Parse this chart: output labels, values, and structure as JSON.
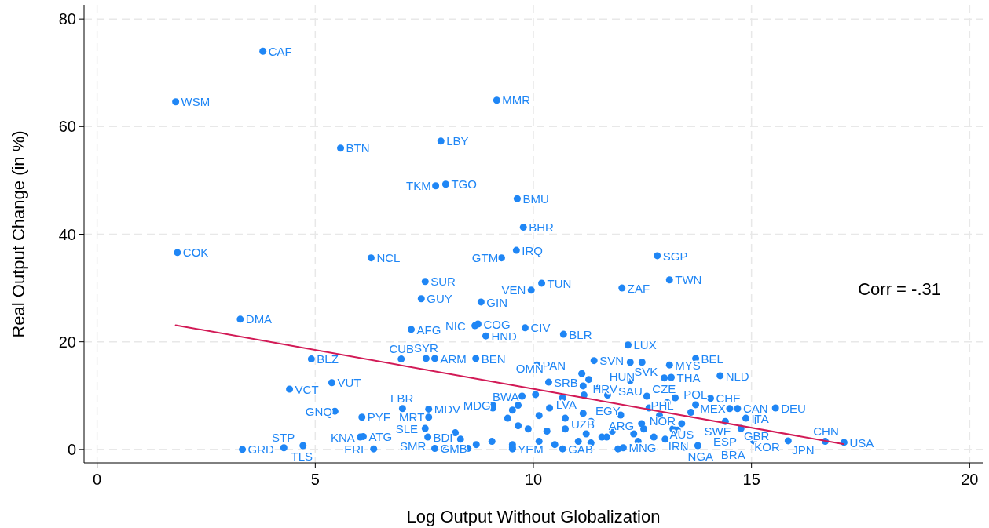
{
  "chart_data": {
    "type": "scatter",
    "xlabel": "Log Output Without Globalization",
    "ylabel": "Real Output Change (in %)",
    "xlim": [
      -0.3,
      20.3
    ],
    "ylim": [
      -2.5,
      82.5
    ],
    "xticks": [
      0,
      5,
      10,
      15,
      20
    ],
    "yticks": [
      0,
      20,
      40,
      60,
      80
    ],
    "grid": true,
    "annotations": [
      "Corr = -.31"
    ],
    "series": [
      {
        "marker": "circle",
        "color": "#1f86f5",
        "x": [
          3.8,
          1.8,
          9.16,
          5.58,
          7.88,
          7.76,
          7.99,
          9.63,
          9.77,
          1.84,
          6.28,
          9.61,
          9.27,
          12.84,
          7.52,
          10.19,
          9.95,
          13.12,
          12.03,
          7.43,
          8.8,
          3.28,
          7.2,
          8.73,
          8.66,
          9.81,
          8.91,
          10.69,
          12.17,
          13.72,
          10.08,
          11.39,
          12.22,
          12.49,
          13.12,
          4.91,
          6.97,
          7.54,
          7.74,
          8.68,
          5.38,
          4.41,
          11.11,
          12.22,
          13.16,
          13.0,
          10.35,
          11.27,
          14.28,
          14.06,
          11.7,
          11.16,
          12.6,
          13.72,
          15.55,
          14.5,
          14.68,
          13.61,
          14.87,
          15.1,
          14.4,
          14.76,
          13.4,
          13.3,
          15.84,
          16.69,
          17.12,
          15.05,
          13.45,
          13.77,
          11.14,
          12.0,
          5.45,
          6.07,
          7.0,
          7.6,
          7.6,
          7.52,
          7.58,
          6.03,
          6.1,
          3.33,
          4.28,
          4.72,
          6.34,
          7.74,
          7.98,
          8.5,
          9.07,
          9.74,
          12.06,
          10.67,
          9.52,
          9.23,
          10.05,
          10.67,
          11.14,
          11.5,
          9.07,
          9.52,
          10.13,
          10.73,
          11.32,
          12.65,
          12.89,
          13.25,
          13.07,
          9.41,
          9.65,
          9.88,
          10.31,
          10.73,
          11.21,
          11.57,
          11.81,
          12.3,
          12.53,
          12.76,
          13.2,
          9.05,
          9.52,
          10.13,
          10.49,
          11.03,
          11.32,
          11.68,
          11.94,
          12.4,
          13.02,
          12.48,
          9.65,
          10.37,
          8.21,
          8.33,
          8.69,
          9.52
        ],
        "values": [
          74.0,
          64.6,
          64.9,
          56.0,
          57.3,
          49.0,
          49.3,
          46.6,
          41.3,
          36.6,
          35.6,
          37.0,
          35.6,
          36.0,
          31.2,
          30.9,
          29.6,
          31.5,
          30.0,
          28.0,
          27.4,
          24.2,
          22.3,
          23.3,
          23.0,
          22.6,
          21.1,
          21.4,
          19.4,
          16.9,
          15.7,
          16.5,
          16.2,
          16.2,
          15.7,
          16.8,
          16.8,
          16.9,
          16.9,
          16.9,
          12.4,
          11.2,
          14.1,
          12.8,
          13.4,
          13.3,
          12.5,
          13.0,
          13.7,
          9.5,
          10.1,
          10.1,
          9.9,
          8.3,
          7.7,
          7.6,
          7.6,
          6.9,
          5.8,
          5.4,
          5.2,
          3.9,
          4.8,
          3.6,
          1.6,
          1.5,
          1.3,
          1.6,
          0.4,
          0.7,
          6.7,
          6.4,
          7.1,
          6.0,
          7.6,
          7.5,
          6.0,
          3.9,
          2.3,
          2.3,
          2.4,
          0.0,
          0.3,
          0.7,
          0.1,
          0.2,
          0.2,
          0.2,
          8.2,
          9.9,
          0.3,
          0.1,
          0.1,
          9.8,
          10.2,
          9.6,
          11.8,
          11.4,
          7.7,
          7.3,
          6.3,
          5.8,
          5.2,
          7.7,
          6.3,
          9.6,
          8.7,
          5.8,
          4.4,
          3.8,
          3.4,
          3.8,
          2.9,
          2.3,
          3.4,
          2.9,
          3.8,
          2.3,
          3.8,
          1.5,
          0.9,
          1.5,
          0.9,
          1.5,
          1.2,
          2.3,
          0.1,
          1.5,
          1.9,
          4.8,
          8.2,
          7.7,
          3.1,
          1.9,
          0.9,
          0.4
        ],
        "value_labels": [
          "CAF",
          "WSM",
          "MMR",
          "BTN",
          "LBY",
          "TKM",
          "TGO",
          "BMU",
          "BHR",
          "COK",
          "NCL",
          "IRQ",
          "GTM",
          "SGP",
          "SUR",
          "TUN",
          "VEN",
          "TWN",
          "ZAF",
          "GUY",
          "GIN",
          "DMA",
          "AFG",
          "COG",
          "NIC",
          "CIV",
          "HND",
          "BLR",
          "LUX",
          "BEL",
          "PAN",
          "SVN",
          "SVK",
          "HUN",
          "MYS",
          "BLZ",
          "CUB",
          "SYR",
          "ARM",
          "BEN",
          "VUT",
          "VCT",
          "SRB",
          "SAU",
          "THA",
          "CZE",
          "OMN",
          "HRV",
          "NLD",
          "CHE",
          "EGY",
          "LVA",
          "PHL",
          "POL",
          "DEU",
          "MEX",
          "CAN",
          "SWE",
          "ITA",
          "GBR",
          "ESP",
          "KOR",
          "AUS",
          "NOR",
          "JPN",
          "CHN",
          "USA",
          "BRA",
          "NGA",
          "IRN",
          "UZB",
          "ARG",
          "GNQ",
          "PYF",
          "LBR",
          "MDV",
          "MRT",
          "SLE",
          "SMR",
          "KNA",
          "ATG",
          "GRD",
          "STP",
          "TLS",
          "ERI",
          "GMB",
          "BDI",
          null,
          "MDG",
          "BWA",
          "MNG",
          "GAB",
          "YEM",
          null,
          null,
          null,
          null,
          null,
          null,
          null,
          null,
          null,
          null,
          null,
          null,
          null,
          null,
          null,
          null,
          null,
          null,
          null,
          null,
          null,
          null,
          null,
          null,
          null,
          null,
          null,
          null,
          null,
          null,
          null,
          null,
          null,
          null,
          null,
          null,
          null,
          null,
          null,
          null,
          null,
          null,
          null
        ]
      },
      {
        "type": "line",
        "marker": "none",
        "color": "#d21a56",
        "x": [
          1.8,
          17.1
        ],
        "values": [
          23.1,
          1.0
        ]
      }
    ]
  }
}
